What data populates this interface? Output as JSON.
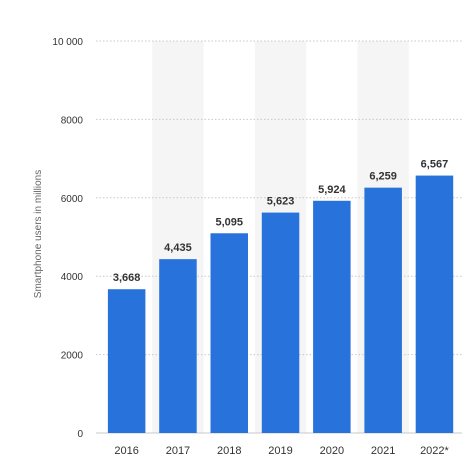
{
  "chart_data": {
    "type": "bar",
    "title": "",
    "xlabel": "",
    "ylabel": "Smartphone users in millions",
    "categories": [
      "2016",
      "2017",
      "2018",
      "2019",
      "2020",
      "2021",
      "2022*"
    ],
    "values": [
      3668,
      4435,
      5095,
      5623,
      5924,
      6259,
      6567
    ],
    "value_labels": [
      "3,668",
      "4,435",
      "5,095",
      "5,623",
      "5,924",
      "6,259",
      "6,567"
    ],
    "ylim": [
      0,
      10000
    ],
    "yticks": [
      0,
      2000,
      4000,
      6000,
      8000,
      10000
    ],
    "ytick_labels": [
      "0",
      "2000",
      "4000",
      "6000",
      "8000",
      "10 000"
    ],
    "grid": true,
    "colors": {
      "bar": "#2872dc",
      "band": "#f5f5f5",
      "grid": "#c8c8c8",
      "tick_text": "#333333",
      "value_text": "#333333",
      "axis_title": "#666666"
    }
  }
}
